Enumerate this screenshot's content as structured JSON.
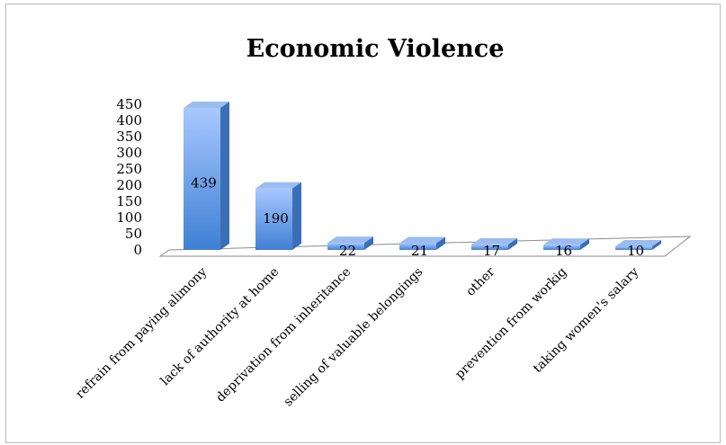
{
  "chart_data": {
    "type": "bar",
    "title": "Economic Violence",
    "xlabel": "",
    "ylabel": "",
    "categories": [
      "refrain from paying alimony",
      "lack of authority at home",
      "deprivation from inheritance",
      "selling of valuable belongings",
      "other",
      "prevention from workig",
      "taking women's salary"
    ],
    "values": [
      439,
      190,
      22,
      21,
      17,
      16,
      10
    ],
    "data_labels": [
      "439",
      "190",
      "22",
      "21",
      "17",
      "16",
      "10"
    ],
    "y_ticks": [
      "0",
      "50",
      "100",
      "150",
      "200",
      "250",
      "300",
      "350",
      "400",
      "450"
    ],
    "ylim": [
      0,
      450
    ],
    "grid": false,
    "legend": "none",
    "style": "3d-column",
    "colors": {
      "bar_front_top": "#a8c8ff",
      "bar_front_bottom": "#3f7fd4",
      "bar_side": "#3a6fb8",
      "bar_top": "#9bbcf0",
      "floor": "#ffffff",
      "floor_stroke": "#8c8c8c"
    }
  }
}
